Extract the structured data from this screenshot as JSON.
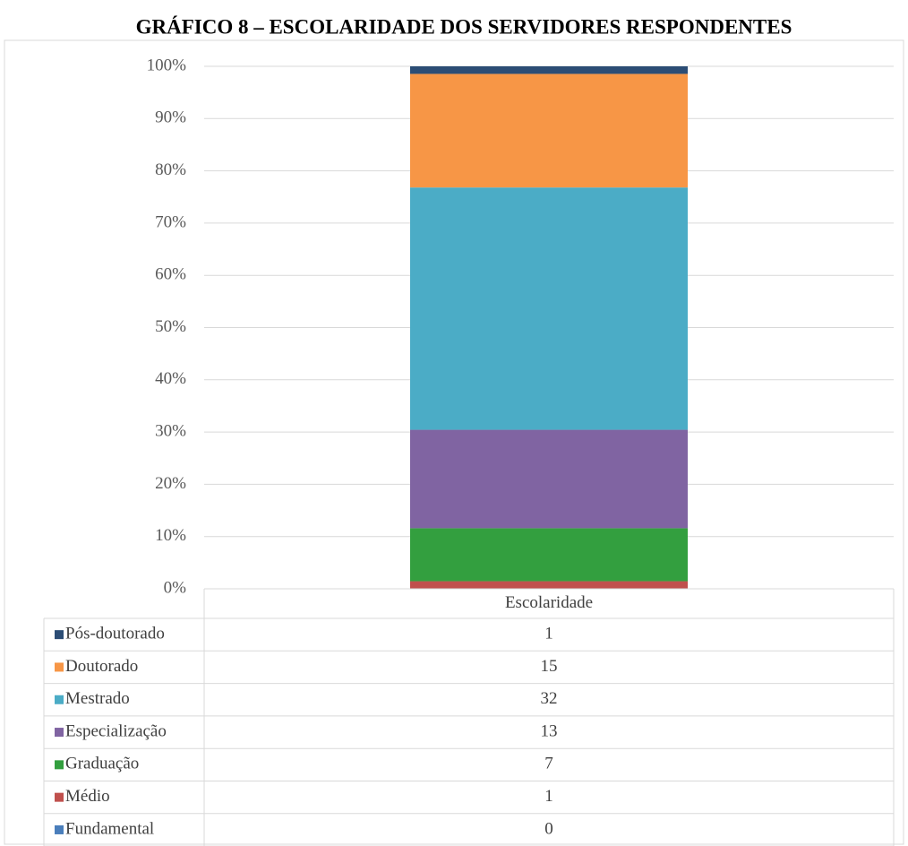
{
  "chart_data": {
    "type": "bar",
    "stacked": "percent",
    "title": "GRÁFICO 8 – ESCOLARIDADE DOS SERVIDORES RESPONDENTES",
    "categories": [
      "Escolaridade"
    ],
    "series": [
      {
        "name": "Fundamental",
        "color": "#4a7ebb",
        "values": [
          0
        ]
      },
      {
        "name": "Médio",
        "color": "#c0504d",
        "values": [
          1
        ]
      },
      {
        "name": "Graduação",
        "color": "#339f3f",
        "values": [
          7
        ]
      },
      {
        "name": "Especialização",
        "color": "#8064a2",
        "values": [
          13
        ]
      },
      {
        "name": "Mestrado",
        "color": "#4bacc6",
        "values": [
          32
        ]
      },
      {
        "name": "Doutorado",
        "color": "#f79646",
        "values": [
          15
        ]
      },
      {
        "name": "Pós-doutorado",
        "color": "#2c4d75",
        "values": [
          1
        ]
      }
    ],
    "ylim": [
      0,
      100
    ],
    "yticks": [
      {
        "value": 0,
        "label": "0%"
      },
      {
        "value": 10,
        "label": "10%"
      },
      {
        "value": 20,
        "label": "20%"
      },
      {
        "value": 30,
        "label": "30%"
      },
      {
        "value": 40,
        "label": "40%"
      },
      {
        "value": 50,
        "label": "50%"
      },
      {
        "value": 60,
        "label": "60%"
      },
      {
        "value": 70,
        "label": "70%"
      },
      {
        "value": 80,
        "label": "80%"
      },
      {
        "value": 90,
        "label": "90%"
      },
      {
        "value": 100,
        "label": "100%"
      }
    ],
    "grid": true,
    "data_table": true
  }
}
